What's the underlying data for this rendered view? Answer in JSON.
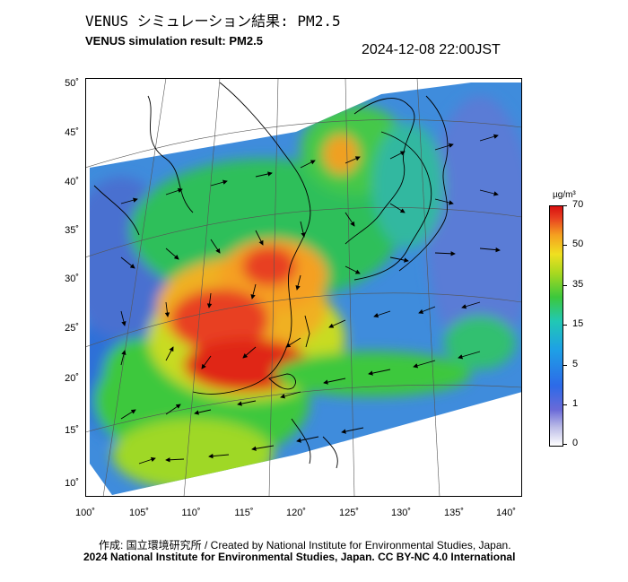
{
  "title_jp": "VENUS シミュレーション結果: PM2.5",
  "title_en": "VENUS simulation result: PM2.5",
  "timestamp": "2024-12-08 22:00JST",
  "lat_labels": [
    "50˚",
    "45˚",
    "40˚",
    "35˚",
    "30˚",
    "25˚",
    "20˚",
    "15˚",
    "10˚"
  ],
  "lon_labels": [
    "100˚",
    "105˚",
    "110˚",
    "115˚",
    "120˚",
    "125˚",
    "130˚",
    "135˚",
    "140˚"
  ],
  "colorbar": {
    "unit": "µg/m³",
    "labels": [
      "70",
      "50",
      "35",
      "15",
      "5",
      "1",
      "0"
    ]
  },
  "credit": "作成: 国立環境研究所 / Created by National Institute for Environmental Studies, Japan.",
  "copyright": "2024 National Institute for Environmental Studies, Japan. CC BY-NC 4.0 International",
  "colors": {
    "very_high": "#e01a10",
    "high": "#f5a020",
    "mid": "#3cc83c",
    "low": "#1ea0e6",
    "very_low": "#6a6ad8"
  }
}
